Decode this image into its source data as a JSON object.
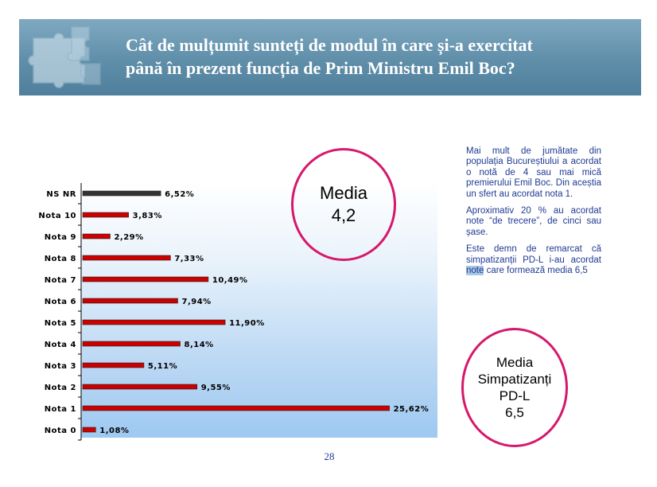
{
  "header": {
    "title_line1": "Cât de mulțumit sunteți de modul în care și-a exercitat",
    "title_line2": "până în prezent funcția de Prim Ministru Emil Boc?"
  },
  "chart_data": {
    "type": "bar",
    "orientation": "horizontal",
    "categories": [
      "NS NR",
      "Nota 10",
      "Nota 9",
      "Nota 8",
      "Nota 7",
      "Nota 6",
      "Nota 5",
      "Nota 4",
      "Nota 3",
      "Nota 2",
      "Nota 1",
      "Nota 0"
    ],
    "values": [
      6.52,
      3.83,
      2.29,
      7.33,
      10.49,
      7.94,
      11.9,
      8.14,
      5.11,
      9.55,
      25.62,
      1.08
    ],
    "value_labels": [
      "6,52%",
      "3,83%",
      "2,29%",
      "7,33%",
      "10,49%",
      "7,94%",
      "11,90%",
      "8,14%",
      "5,11%",
      "9,55%",
      "25,62%",
      "1,08%"
    ],
    "bar_colors": [
      "#333333",
      "#cc0000",
      "#cc0000",
      "#cc0000",
      "#cc0000",
      "#cc0000",
      "#cc0000",
      "#cc0000",
      "#cc0000",
      "#cc0000",
      "#cc0000",
      "#cc0000"
    ],
    "xlim": [
      0,
      30
    ],
    "grid": false,
    "legend": "none"
  },
  "media": {
    "line1": "Media",
    "line2": "4,2"
  },
  "media_pdl": {
    "line1": "Media",
    "line2": "Simpatizanți",
    "line3": "PD-L",
    "line4": "6,5"
  },
  "side_text": {
    "p1": "Mai mult de jumătate din populația Bucureștiului a acordat o notă de 4 sau mai mică premierului Emil Boc. Din aceștia un sfert au acordat nota 1.",
    "p2": "Aproximativ 20 % au acordat note “de trecere”, de cinci sau șase.",
    "p3_before": "Este demn de remarcat că simpatizanții PD-L i-au acordat ",
    "p3_highlight": "note",
    "p3_after": " care formează media 6,5"
  },
  "page_number": "28",
  "colors": {
    "header": "#5f8ea9",
    "accent_pink": "#d6186a",
    "bar_red": "#cc0000",
    "bar_dark": "#333333",
    "text_blue": "#1f3a93"
  }
}
